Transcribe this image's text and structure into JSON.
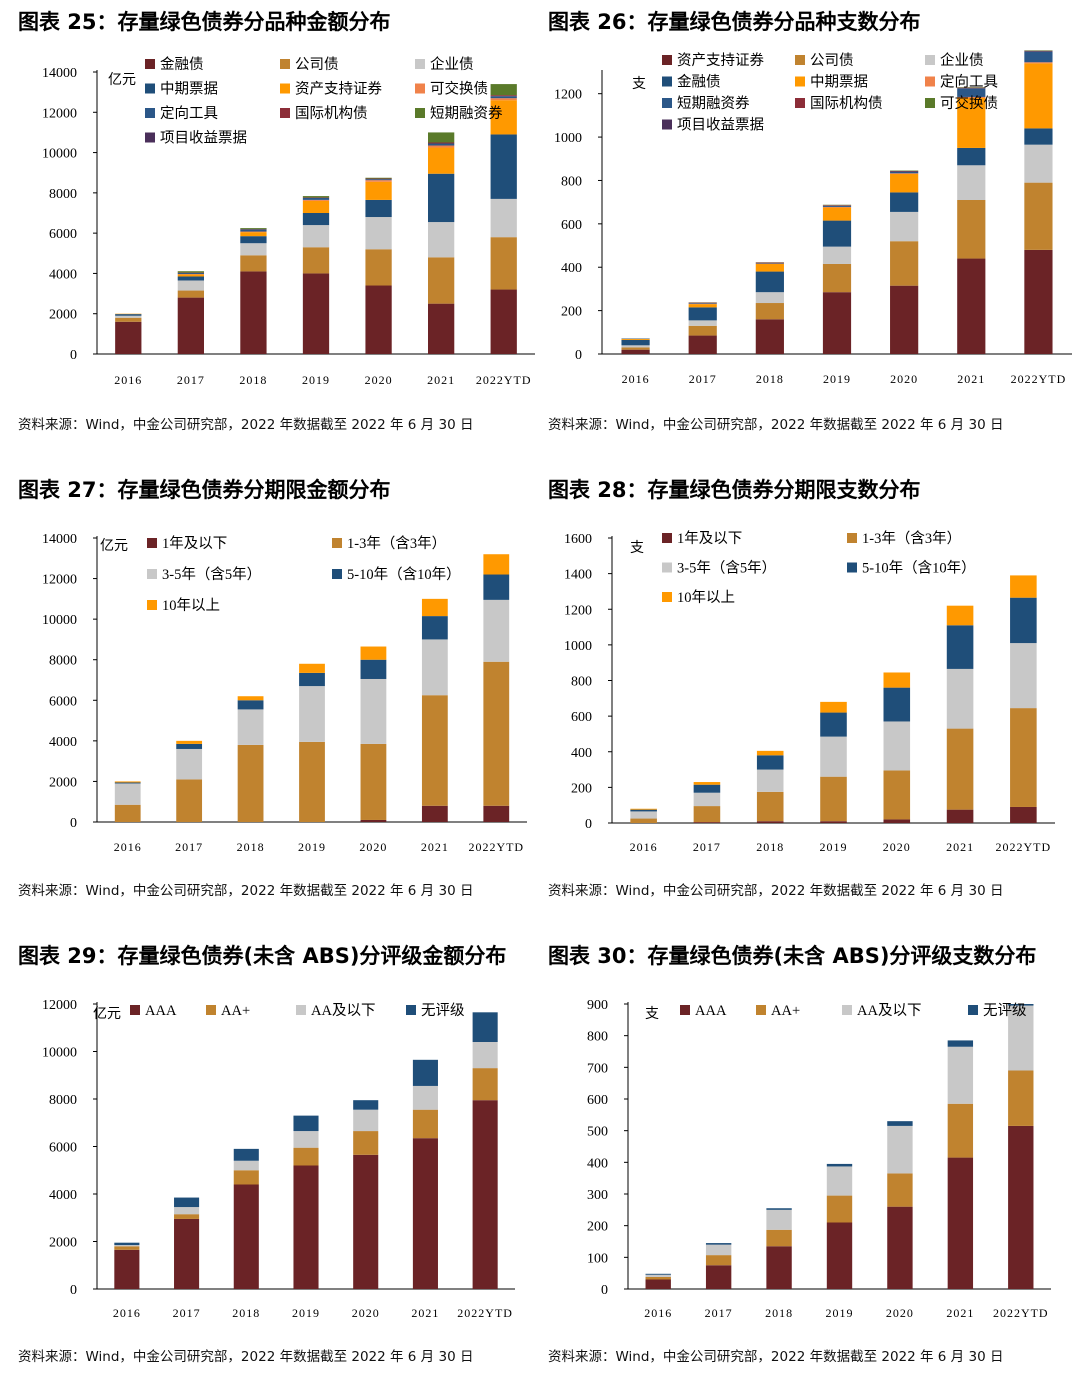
{
  "panels": [
    {
      "id": "fig25",
      "title": "图表 25：存量绿色债券分品种金额分布",
      "source": "资料来源：Wind，中金公司研究部，2022 年数据截至 2022 年 6 月 30 日",
      "chart_data": {
        "type": "bar",
        "stacked": true,
        "unit": "亿元",
        "ylim": [
          0,
          14000
        ],
        "yticks": [
          0,
          2000,
          4000,
          6000,
          8000,
          10000,
          12000,
          14000
        ],
        "categories": [
          "2016",
          "2017",
          "2018",
          "2019",
          "2020",
          "2021",
          "2022YTD"
        ],
        "legend_cols": 3,
        "series": [
          {
            "name": "金融债",
            "color": "#6b2326",
            "values": [
              1600,
              2800,
              4100,
              4000,
              3400,
              2500,
              3200
            ]
          },
          {
            "name": "公司债",
            "color": "#c0832f",
            "values": [
              200,
              350,
              800,
              1300,
              1800,
              2300,
              2600
            ]
          },
          {
            "name": "企业债",
            "color": "#c8c8c8",
            "values": [
              100,
              500,
              600,
              1100,
              1600,
              1750,
              1900
            ]
          },
          {
            "name": "中期票据",
            "color": "#1f4e79",
            "values": [
              80,
              200,
              350,
              600,
              850,
              2400,
              3200
            ]
          },
          {
            "name": "资产支持证券",
            "color": "#ff9900",
            "values": [
              20,
              100,
              200,
              600,
              900,
              1300,
              1700
            ]
          },
          {
            "name": "可交换债",
            "color": "#f0824a",
            "values": [
              0,
              20,
              30,
              50,
              80,
              100,
              100
            ]
          },
          {
            "name": "定向工具",
            "color": "#2b5788",
            "values": [
              0,
              50,
              100,
              100,
              50,
              100,
              100
            ]
          },
          {
            "name": "国际机构债",
            "color": "#8c2d38",
            "values": [
              0,
              20,
              20,
              20,
              30,
              50,
              50
            ]
          },
          {
            "name": "短期融资券",
            "color": "#5a7a2a",
            "values": [
              0,
              70,
              50,
              70,
              40,
              500,
              550
            ]
          },
          {
            "name": "项目收益票据",
            "color": "#4a2f5a",
            "values": [
              0,
              0,
              0,
              0,
              0,
              0,
              0
            ]
          }
        ]
      }
    },
    {
      "id": "fig26",
      "title": "图表 26：存量绿色债券分品种支数分布",
      "source": "资料来源：Wind，中金公司研究部，2022 年数据截至 2022 年 6 月 30 日",
      "chart_data": {
        "type": "bar",
        "stacked": true,
        "unit": "支",
        "ylim": [
          0,
          1300
        ],
        "yticks": [
          0,
          200,
          400,
          600,
          800,
          1000,
          1200
        ],
        "categories": [
          "2016",
          "2017",
          "2018",
          "2019",
          "2020",
          "2021",
          "2022YTD"
        ],
        "legend_cols": 3,
        "series": [
          {
            "name": "资产支持证券",
            "color": "#6b2326",
            "values": [
              20,
              85,
              160,
              285,
              315,
              440,
              480
            ]
          },
          {
            "name": "公司债",
            "color": "#c0832f",
            "values": [
              10,
              45,
              75,
              130,
              205,
              270,
              310
            ]
          },
          {
            "name": "企业债",
            "color": "#c8c8c8",
            "values": [
              10,
              25,
              50,
              80,
              135,
              160,
              175
            ]
          },
          {
            "name": "金融债",
            "color": "#1f4e79",
            "values": [
              25,
              60,
              95,
              120,
              90,
              80,
              75
            ]
          },
          {
            "name": "中期票据",
            "color": "#ff9900",
            "values": [
              5,
              15,
              35,
              60,
              85,
              230,
              300
            ]
          },
          {
            "name": "定向工具",
            "color": "#f0824a",
            "values": [
              0,
              2,
              2,
              3,
              3,
              5,
              5
            ]
          },
          {
            "name": "短期融资券",
            "color": "#2b5788",
            "values": [
              2,
              3,
              3,
              5,
              8,
              40,
              50
            ]
          },
          {
            "name": "国际机构债",
            "color": "#8c2d38",
            "values": [
              0,
              2,
              2,
              3,
              3,
              3,
              3
            ]
          },
          {
            "name": "可交换债",
            "color": "#5a7a2a",
            "values": [
              0,
              1,
              1,
              2,
              2,
              2,
              2
            ]
          },
          {
            "name": "项目收益票据",
            "color": "#4a2f5a",
            "values": [
              0,
              0,
              0,
              0,
              0,
              0,
              0
            ]
          }
        ]
      }
    },
    {
      "id": "fig27",
      "title": "图表 27：存量绿色债券分期限金额分布",
      "source": "资料来源：Wind，中金公司研究部，2022 年数据截至 2022 年 6 月 30 日",
      "chart_data": {
        "type": "bar",
        "stacked": true,
        "unit": "亿元",
        "ylim": [
          0,
          14000
        ],
        "yticks": [
          0,
          2000,
          4000,
          6000,
          8000,
          10000,
          12000,
          14000
        ],
        "categories": [
          "2016",
          "2017",
          "2018",
          "2019",
          "2020",
          "2021",
          "2022YTD"
        ],
        "legend_cols": 2,
        "series": [
          {
            "name": "1年及以下",
            "color": "#6b2326",
            "values": [
              0,
              0,
              0,
              0,
              100,
              800,
              800
            ]
          },
          {
            "name": "1-3年（含3年）",
            "color": "#c0832f",
            "values": [
              850,
              2100,
              3800,
              3950,
              3750,
              5450,
              7100
            ]
          },
          {
            "name": "3-5年（含5年）",
            "color": "#c8c8c8",
            "values": [
              1050,
              1500,
              1750,
              2750,
              3200,
              2750,
              3050
            ]
          },
          {
            "name": "5-10年（含10年）",
            "color": "#1f4e79",
            "values": [
              50,
              250,
              450,
              650,
              950,
              1150,
              1250
            ]
          },
          {
            "name": "10年以上",
            "color": "#ff9900",
            "values": [
              50,
              150,
              200,
              450,
              650,
              850,
              1000
            ]
          }
        ]
      }
    },
    {
      "id": "fig28",
      "title": "图表 28：存量绿色债券分期限支数分布",
      "source": "资料来源：Wind，中金公司研究部，2022 年数据截至 2022 年 6 月 30 日",
      "chart_data": {
        "type": "bar",
        "stacked": true,
        "unit": "支",
        "ylim": [
          0,
          1600
        ],
        "yticks": [
          0,
          200,
          400,
          600,
          800,
          1000,
          1200,
          1400,
          1600
        ],
        "categories": [
          "2016",
          "2017",
          "2018",
          "2019",
          "2020",
          "2021",
          "2022YTD"
        ],
        "legend_cols": 2,
        "series": [
          {
            "name": "1年及以下",
            "color": "#6b2326",
            "values": [
              0,
              5,
              10,
              10,
              20,
              75,
              90
            ]
          },
          {
            "name": "1-3年（含3年）",
            "color": "#c0832f",
            "values": [
              25,
              90,
              165,
              250,
              275,
              455,
              555
            ]
          },
          {
            "name": "3-5年（含5年）",
            "color": "#c8c8c8",
            "values": [
              40,
              75,
              125,
              225,
              275,
              335,
              365
            ]
          },
          {
            "name": "5-10年（含10年）",
            "color": "#1f4e79",
            "values": [
              10,
              45,
              80,
              135,
              190,
              245,
              255
            ]
          },
          {
            "name": "10年以上",
            "color": "#ff9900",
            "values": [
              5,
              15,
              25,
              60,
              85,
              110,
              125
            ]
          }
        ]
      }
    },
    {
      "id": "fig29",
      "title": "图表 29：存量绿色债券(未含 ABS)分评级金额分布",
      "source": "资料来源：Wind，中金公司研究部，2022 年数据截至 2022 年 6 月 30 日",
      "chart_data": {
        "type": "bar",
        "stacked": true,
        "unit": "亿元",
        "ylim": [
          0,
          12000
        ],
        "yticks": [
          0,
          2000,
          4000,
          6000,
          8000,
          10000,
          12000
        ],
        "categories": [
          "2016",
          "2017",
          "2018",
          "2019",
          "2020",
          "2021",
          "2022YTD"
        ],
        "legend_cols": 4,
        "series": [
          {
            "name": "AAA",
            "color": "#6b2326",
            "values": [
              1650,
              2950,
              4400,
              5200,
              5650,
              6350,
              7950
            ]
          },
          {
            "name": "AA+",
            "color": "#c0832f",
            "values": [
              150,
              200,
              600,
              750,
              1000,
              1200,
              1350
            ]
          },
          {
            "name": "AA及以下",
            "color": "#c8c8c8",
            "values": [
              50,
              300,
              400,
              700,
              900,
              1000,
              1100
            ]
          },
          {
            "name": "无评级",
            "color": "#1f4e79",
            "values": [
              100,
              400,
              500,
              650,
              400,
              1100,
              1250
            ]
          }
        ]
      }
    },
    {
      "id": "fig30",
      "title": "图表 30：存量绿色债券(未含 ABS)分评级支数分布",
      "source": "资料来源：Wind，中金公司研究部，2022 年数据截至 2022 年 6 月 30 日",
      "chart_data": {
        "type": "bar",
        "stacked": true,
        "unit": "支",
        "ylim": [
          0,
          900
        ],
        "yticks": [
          0,
          100,
          200,
          300,
          400,
          500,
          600,
          700,
          800,
          900
        ],
        "categories": [
          "2016",
          "2017",
          "2018",
          "2019",
          "2020",
          "2021",
          "2022YTD"
        ],
        "legend_cols": 4,
        "series": [
          {
            "name": "AAA",
            "color": "#6b2326",
            "values": [
              30,
              75,
              135,
              210,
              260,
              415,
              515
            ]
          },
          {
            "name": "AA+",
            "color": "#c0832f",
            "values": [
              8,
              32,
              52,
              85,
              105,
              170,
              175
            ]
          },
          {
            "name": "AA及以下",
            "color": "#c8c8c8",
            "values": [
              7,
              33,
              63,
              92,
              150,
              180,
              205
            ]
          },
          {
            "name": "无评级",
            "color": "#1f4e79",
            "values": [
              3,
              5,
              5,
              8,
              15,
              20,
              5
            ]
          }
        ]
      }
    }
  ]
}
